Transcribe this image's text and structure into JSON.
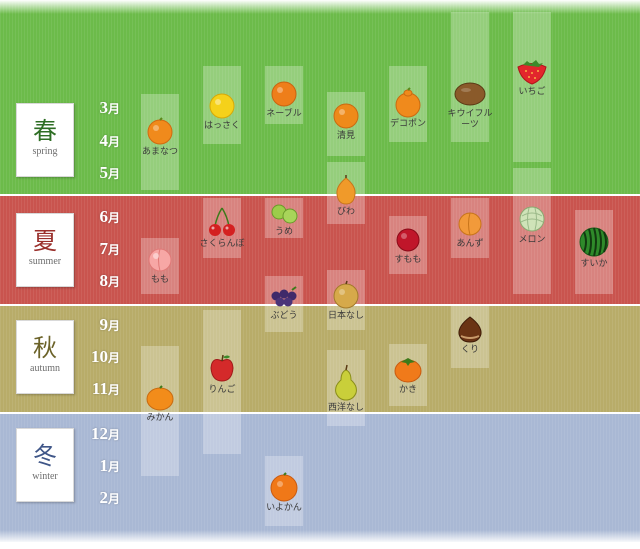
{
  "seasons": [
    {
      "kanji": "春",
      "en": "spring"
    },
    {
      "kanji": "夏",
      "en": "summer"
    },
    {
      "kanji": "秋",
      "en": "autumn"
    },
    {
      "kanji": "冬",
      "en": "winter"
    }
  ],
  "months": [
    {
      "num": "3",
      "suffix": "月"
    },
    {
      "num": "4",
      "suffix": "月"
    },
    {
      "num": "5",
      "suffix": "月"
    },
    {
      "num": "6",
      "suffix": "月"
    },
    {
      "num": "7",
      "suffix": "月"
    },
    {
      "num": "8",
      "suffix": "月"
    },
    {
      "num": "9",
      "suffix": "月"
    },
    {
      "num": "10",
      "suffix": "月"
    },
    {
      "num": "11",
      "suffix": "月"
    },
    {
      "num": "12",
      "suffix": "月"
    },
    {
      "num": "1",
      "suffix": "月"
    },
    {
      "num": "2",
      "suffix": "月"
    }
  ],
  "fruits": [
    {
      "name": "あまなつ",
      "icon": "orange-icon",
      "color": "#f08a1c"
    },
    {
      "name": "はっさく",
      "icon": "lemon-yellow-orange-icon",
      "color": "#f5d11a"
    },
    {
      "name": "ネーブル",
      "icon": "navel-orange-icon",
      "color": "#ee7e1a"
    },
    {
      "name": "清見",
      "icon": "kiyomi-orange-icon",
      "color": "#ee8a1a"
    },
    {
      "name": "デコポン",
      "icon": "dekopon-icon",
      "color": "#f08a1c"
    },
    {
      "name": "キウイフルーツ",
      "icon": "kiwi-icon",
      "color": "#8a5a2a"
    },
    {
      "name": "いちご",
      "icon": "strawberry-icon",
      "color": "#e2262c"
    },
    {
      "name": "びわ",
      "icon": "loquat-icon",
      "color": "#f09a2a"
    },
    {
      "name": "もも",
      "icon": "peach-icon",
      "color": "#f7a7a5"
    },
    {
      "name": "さくらんぼ",
      "icon": "cherry-icon",
      "color": "#d42020"
    },
    {
      "name": "うめ",
      "icon": "ume-plum-icon",
      "color": "#9ccc4a"
    },
    {
      "name": "すもも",
      "icon": "sumomo-plum-icon",
      "color": "#c0162a"
    },
    {
      "name": "あんず",
      "icon": "apricot-icon",
      "color": "#f29a3a"
    },
    {
      "name": "メロン",
      "icon": "melon-icon",
      "color": "#cfe3b8"
    },
    {
      "name": "すいか",
      "icon": "watermelon-icon",
      "color": "#2f8a2a"
    },
    {
      "name": "ぶどう",
      "icon": "grapes-icon",
      "color": "#3f2a6a"
    },
    {
      "name": "日本なし",
      "icon": "japanese-pear-icon",
      "color": "#d6a94a"
    },
    {
      "name": "くり",
      "icon": "chestnut-icon",
      "color": "#6a3414"
    },
    {
      "name": "りんご",
      "icon": "apple-icon",
      "color": "#d42a2a"
    },
    {
      "name": "かき",
      "icon": "persimmon-icon",
      "color": "#f07a1a"
    },
    {
      "name": "西洋なし",
      "icon": "western-pear-icon",
      "color": "#c9cf3a"
    },
    {
      "name": "みかん",
      "icon": "mikan-icon",
      "color": "#f28c1a"
    },
    {
      "name": "いよかん",
      "icon": "iyokan-icon",
      "color": "#f07818"
    }
  ]
}
